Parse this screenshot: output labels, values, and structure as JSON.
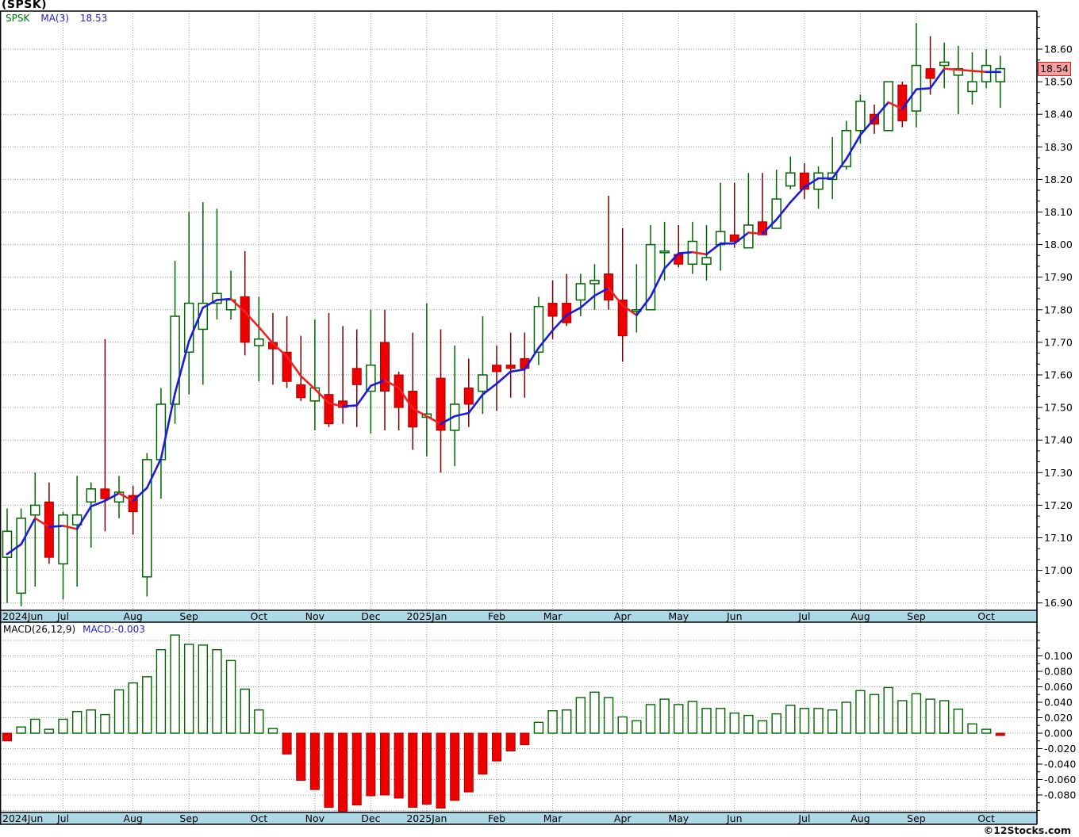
{
  "title": "(SPSK)",
  "legend": {
    "symbol": "SPSK",
    "ma_label": "MA(3)",
    "ma_value": "18.53"
  },
  "macd_legend": {
    "label": "MACD(26,12,9)",
    "value": "MACD:-0.003"
  },
  "footer": {
    "watermark": "©12Stocks.com"
  },
  "colors": {
    "up": "#006600",
    "down_fill": "#ee0000",
    "down_border": "#aa0000",
    "down_wick": "#7a0000",
    "ma_up": "#1a1ae0",
    "ma_down": "#ee2222",
    "band": "#add8e6",
    "grid": "#999999",
    "price_flag_bg": "#f5a0a0",
    "price_flag_border": "#cc2222"
  },
  "chart_data": {
    "type": "candlestick_with_macd_histogram",
    "symbol": "SPSK",
    "interval": "weekly",
    "ma_period": 3,
    "ma_last": 18.53,
    "last_price_label": "18.54",
    "price_axis": {
      "labels": [
        "18.60",
        "18.50",
        "18.40",
        "18.30",
        "18.20",
        "18.10",
        "18.00",
        "17.90",
        "17.80",
        "17.70",
        "17.60",
        "17.50",
        "17.40",
        "17.30",
        "17.20",
        "17.10",
        "17.00",
        "16.90"
      ],
      "step": 0.1
    },
    "macd_axis": {
      "labels": [
        "0.100",
        "0.080",
        "0.060",
        "0.040",
        "0.020",
        "0.000",
        "-0.020",
        "-0.040",
        "-0.060",
        "-0.080"
      ],
      "step": 0.02
    },
    "months": [
      {
        "label": "2024Jun",
        "week": 0
      },
      {
        "label": "Jul",
        "week": 4
      },
      {
        "label": "Aug",
        "week": 9
      },
      {
        "label": "Sep",
        "week": 13
      },
      {
        "label": "Oct",
        "week": 18
      },
      {
        "label": "Nov",
        "week": 22
      },
      {
        "label": "Dec",
        "week": 26
      },
      {
        "label": "2025Jan",
        "week": 30
      },
      {
        "label": "Feb",
        "week": 35
      },
      {
        "label": "Mar",
        "week": 39
      },
      {
        "label": "Apr",
        "week": 44
      },
      {
        "label": "May",
        "week": 48
      },
      {
        "label": "Jun",
        "week": 52
      },
      {
        "label": "Jul",
        "week": 57
      },
      {
        "label": "Aug",
        "week": 61
      },
      {
        "label": "Sep",
        "week": 65
      },
      {
        "label": "Oct",
        "week": 70
      }
    ],
    "ohlc_format": "open,high,low,close",
    "ohlc": [
      [
        17.04,
        17.19,
        16.9,
        17.12
      ],
      [
        16.93,
        17.19,
        16.89,
        17.16
      ],
      [
        17.17,
        17.3,
        16.95,
        17.2
      ],
      [
        17.21,
        17.27,
        17.02,
        17.04
      ],
      [
        17.02,
        17.18,
        16.91,
        17.17
      ],
      [
        17.14,
        17.29,
        16.95,
        17.17
      ],
      [
        17.21,
        17.27,
        17.07,
        17.25
      ],
      [
        17.25,
        17.71,
        17.12,
        17.22
      ],
      [
        17.21,
        17.29,
        17.16,
        17.24
      ],
      [
        17.23,
        17.26,
        17.11,
        17.18
      ],
      [
        16.98,
        17.36,
        16.92,
        17.34
      ],
      [
        17.34,
        17.56,
        17.22,
        17.51
      ],
      [
        17.51,
        17.95,
        17.45,
        17.78
      ],
      [
        17.67,
        18.1,
        17.54,
        17.82
      ],
      [
        17.74,
        18.13,
        17.57,
        17.82
      ],
      [
        17.82,
        18.11,
        17.77,
        17.85
      ],
      [
        17.8,
        17.92,
        17.77,
        17.83
      ],
      [
        17.84,
        17.98,
        17.66,
        17.7
      ],
      [
        17.69,
        17.84,
        17.58,
        17.71
      ],
      [
        17.7,
        17.79,
        17.57,
        17.68
      ],
      [
        17.67,
        17.78,
        17.56,
        17.58
      ],
      [
        17.57,
        17.72,
        17.52,
        17.53
      ],
      [
        17.52,
        17.77,
        17.43,
        17.56
      ],
      [
        17.54,
        17.79,
        17.44,
        17.45
      ],
      [
        17.52,
        17.75,
        17.45,
        17.5
      ],
      [
        17.62,
        17.74,
        17.44,
        17.57
      ],
      [
        17.55,
        17.8,
        17.42,
        17.63
      ],
      [
        17.7,
        17.8,
        17.43,
        17.55
      ],
      [
        17.6,
        17.61,
        17.43,
        17.5
      ],
      [
        17.55,
        17.73,
        17.37,
        17.44
      ],
      [
        17.47,
        17.82,
        17.35,
        17.48
      ],
      [
        17.59,
        17.74,
        17.3,
        17.43
      ],
      [
        17.43,
        17.69,
        17.32,
        17.51
      ],
      [
        17.56,
        17.65,
        17.44,
        17.51
      ],
      [
        17.55,
        17.78,
        17.48,
        17.6
      ],
      [
        17.63,
        17.69,
        17.49,
        17.61
      ],
      [
        17.63,
        17.73,
        17.53,
        17.62
      ],
      [
        17.65,
        17.73,
        17.53,
        17.62
      ],
      [
        17.67,
        17.84,
        17.63,
        17.81
      ],
      [
        17.82,
        17.89,
        17.71,
        17.78
      ],
      [
        17.82,
        17.91,
        17.75,
        17.76
      ],
      [
        17.83,
        17.91,
        17.78,
        17.88
      ],
      [
        17.88,
        17.94,
        17.8,
        17.89
      ],
      [
        17.91,
        18.15,
        17.8,
        17.83
      ],
      [
        17.83,
        18.05,
        17.64,
        17.72
      ],
      [
        17.8,
        17.94,
        17.73,
        17.8
      ],
      [
        17.8,
        18.06,
        17.8,
        18.0
      ],
      [
        17.98,
        18.07,
        17.89,
        17.98
      ],
      [
        17.97,
        18.06,
        17.93,
        17.94
      ],
      [
        17.94,
        18.07,
        17.91,
        18.01
      ],
      [
        17.94,
        18.06,
        17.89,
        17.96
      ],
      [
        18.0,
        18.19,
        17.92,
        18.04
      ],
      [
        18.03,
        18.19,
        17.99,
        18.01
      ],
      [
        17.99,
        18.22,
        17.99,
        18.06
      ],
      [
        18.07,
        18.22,
        18.03,
        18.03
      ],
      [
        18.05,
        18.23,
        18.05,
        18.14
      ],
      [
        18.18,
        18.27,
        18.17,
        18.22
      ],
      [
        18.22,
        18.25,
        18.14,
        18.17
      ],
      [
        18.17,
        18.24,
        18.11,
        18.22
      ],
      [
        18.2,
        18.33,
        18.14,
        18.22
      ],
      [
        18.24,
        18.38,
        18.23,
        18.35
      ],
      [
        18.35,
        18.46,
        18.31,
        18.44
      ],
      [
        18.4,
        18.43,
        18.34,
        18.37
      ],
      [
        18.35,
        18.5,
        18.35,
        18.5
      ],
      [
        18.49,
        18.5,
        18.36,
        18.38
      ],
      [
        18.41,
        18.68,
        18.36,
        18.55
      ],
      [
        18.54,
        18.64,
        18.46,
        18.51
      ],
      [
        18.55,
        18.62,
        18.48,
        18.56
      ],
      [
        18.52,
        18.61,
        18.4,
        18.54
      ],
      [
        18.47,
        18.59,
        18.43,
        18.5
      ],
      [
        18.5,
        18.6,
        18.48,
        18.55
      ],
      [
        18.5,
        18.58,
        18.42,
        18.54
      ]
    ],
    "ma_seed": [
      17.05,
      17.08
    ],
    "macd": {
      "params": "26,12,9",
      "last": -0.003,
      "values": [
        -0.01,
        0.008,
        0.018,
        0.005,
        0.018,
        0.028,
        0.03,
        0.024,
        0.056,
        0.065,
        0.073,
        0.108,
        0.127,
        0.115,
        0.114,
        0.108,
        0.094,
        0.057,
        0.03,
        0.006,
        -0.027,
        -0.061,
        -0.073,
        -0.096,
        -0.101,
        -0.093,
        -0.081,
        -0.08,
        -0.084,
        -0.096,
        -0.092,
        -0.097,
        -0.087,
        -0.076,
        -0.053,
        -0.036,
        -0.023,
        -0.015,
        0.014,
        0.029,
        0.03,
        0.046,
        0.053,
        0.046,
        0.021,
        0.016,
        0.037,
        0.044,
        0.037,
        0.041,
        0.032,
        0.032,
        0.026,
        0.023,
        0.016,
        0.025,
        0.036,
        0.032,
        0.032,
        0.03,
        0.04,
        0.055,
        0.05,
        0.059,
        0.042,
        0.051,
        0.044,
        0.042,
        0.031,
        0.012,
        0.005,
        -0.003
      ]
    }
  }
}
